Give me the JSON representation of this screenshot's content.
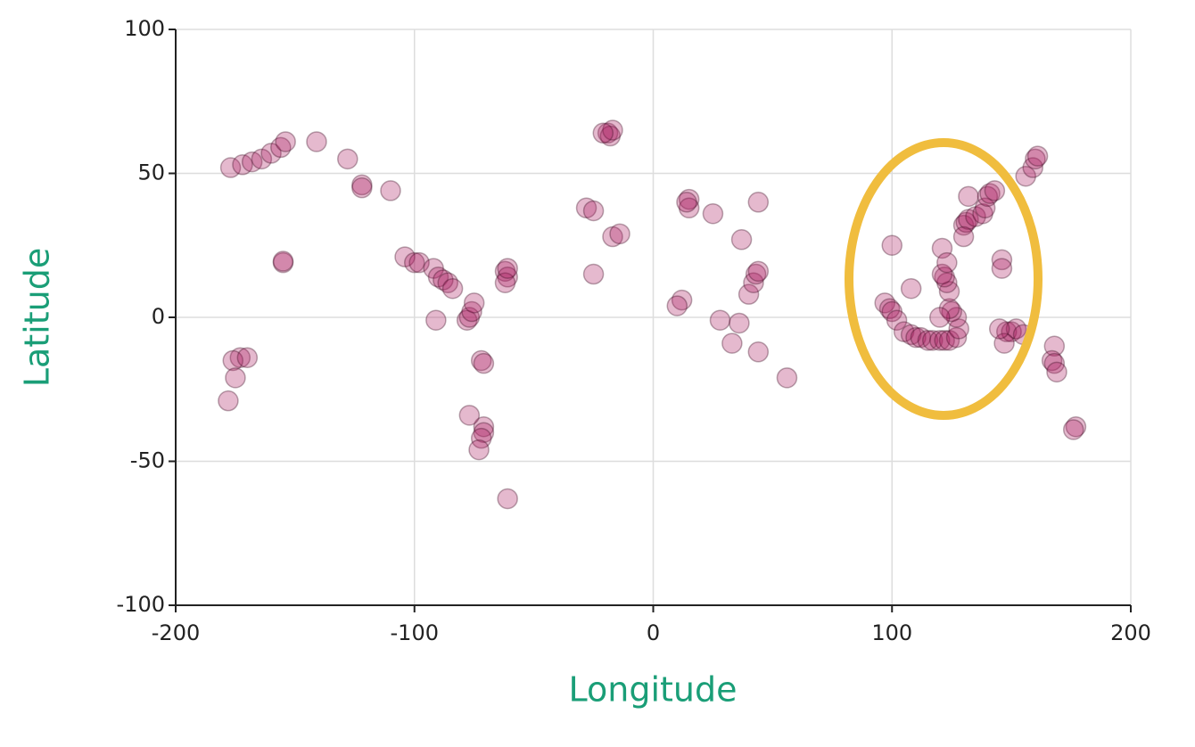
{
  "chart_data": {
    "type": "scatter",
    "x_label": "Longitude",
    "y_label": "Latitude",
    "xlim": [
      -200,
      200
    ],
    "ylim": [
      -100,
      100
    ],
    "xticks": [
      -200,
      -100,
      0,
      100,
      200
    ],
    "yticks": [
      -100,
      -50,
      0,
      50,
      100
    ],
    "grid": true,
    "color": "#a8175d",
    "x": [
      -177,
      -172,
      -168,
      -164,
      -160,
      -156,
      -154,
      -141,
      -128,
      -122,
      -122,
      -110,
      -155,
      -155,
      -173,
      -176,
      -175,
      -178,
      -170,
      -104,
      -100,
      -98,
      -92,
      -90,
      -88,
      -86,
      -84,
      -78,
      -77,
      -76,
      -75,
      -91,
      -72,
      -71,
      -71,
      -71,
      -72,
      -73,
      -77,
      -61,
      -62,
      -61,
      -62,
      -61,
      -19,
      -18,
      -17,
      -21,
      -28,
      -25,
      -25,
      -17,
      -14,
      15,
      15,
      14,
      25,
      12,
      10,
      28,
      36,
      33,
      37,
      40,
      42,
      43,
      44,
      44,
      44,
      56,
      97,
      99,
      100,
      102,
      105,
      108,
      110,
      112,
      115,
      117,
      120,
      122,
      124,
      127,
      128,
      127,
      125,
      124,
      124,
      123,
      122,
      121,
      121,
      123,
      130,
      131,
      132,
      135,
      138,
      139,
      140,
      141,
      143,
      132,
      130,
      100,
      108,
      146,
      146,
      148,
      150,
      152,
      155,
      147,
      145,
      156,
      159,
      160,
      161,
      168,
      167,
      168,
      169,
      177,
      176,
      120
    ],
    "values": [
      52,
      53,
      54,
      55,
      57,
      59,
      61,
      61,
      55,
      46,
      45,
      44,
      19,
      19.5,
      -14,
      -15,
      -21,
      -29,
      -14,
      21,
      19,
      19,
      17,
      14,
      13,
      12,
      10,
      -1,
      0,
      2,
      5,
      -1,
      -15,
      -16,
      -38,
      -40,
      -42,
      -46,
      -34,
      -63,
      16,
      14,
      12,
      17,
      64,
      63,
      65,
      64,
      38,
      37,
      15,
      28,
      29,
      41,
      38,
      40,
      36,
      6,
      4,
      -1,
      -2,
      -9,
      27,
      8,
      12,
      15,
      16,
      40,
      -12,
      -21,
      5,
      3,
      2,
      -1,
      -5,
      -6,
      -7,
      -7,
      -8,
      -8,
      -8,
      -8,
      -8,
      -7,
      -4,
      0,
      2,
      3,
      9,
      12,
      14,
      15,
      24,
      19,
      32,
      33,
      34,
      35,
      36,
      38,
      42,
      43,
      44,
      42,
      28,
      25,
      10,
      20,
      17,
      -5,
      -5,
      -4,
      -6,
      -9,
      -4,
      49,
      52,
      55,
      56,
      -10,
      -15,
      -16,
      -19,
      -38,
      -39,
      0
    ]
  }
}
